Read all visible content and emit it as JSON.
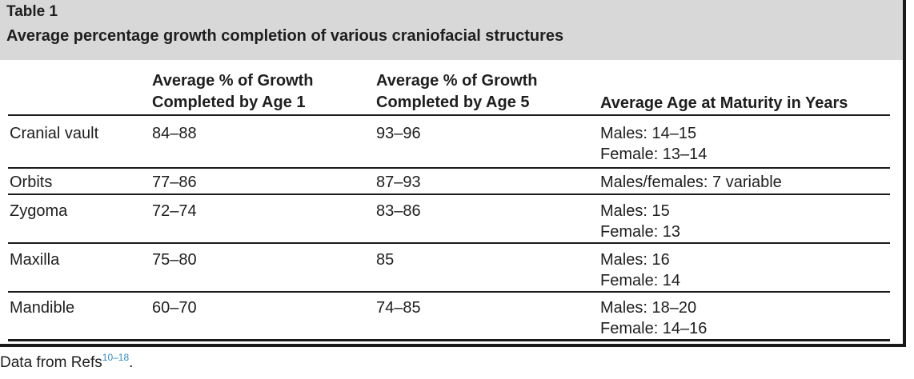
{
  "table": {
    "label": "Table 1",
    "caption": "Average percentage growth completion of various craniofacial structures",
    "columns": {
      "age1": [
        "Average % of Growth",
        "Completed by Age 1"
      ],
      "age5": [
        "Average % of Growth",
        "Completed by Age 5"
      ],
      "maturity": "Average Age at Maturity in Years"
    },
    "rows": [
      {
        "structure": "Cranial vault",
        "age1": "84–88",
        "age5": "93–96",
        "maturity": [
          "Males: 14–15",
          "Female: 13–14"
        ]
      },
      {
        "structure": "Orbits",
        "age1": "77–86",
        "age5": "87–93",
        "maturity": [
          "Males/females: 7 variable"
        ]
      },
      {
        "structure": "Zygoma",
        "age1": "72–74",
        "age5": "83–86",
        "maturity": [
          "Males: 15",
          "Female: 13"
        ]
      },
      {
        "structure": "Maxilla",
        "age1": "75–80",
        "age5": "85",
        "maturity": [
          "Males: 16",
          "Female: 14"
        ]
      },
      {
        "structure": "Mandible",
        "age1": "60–70",
        "age5": "74–85",
        "maturity": [
          "Males: 18–20",
          "Female: 14–16"
        ]
      }
    ]
  },
  "source": {
    "text": "Data from Refs",
    "refs": "10–18",
    "end": "."
  }
}
